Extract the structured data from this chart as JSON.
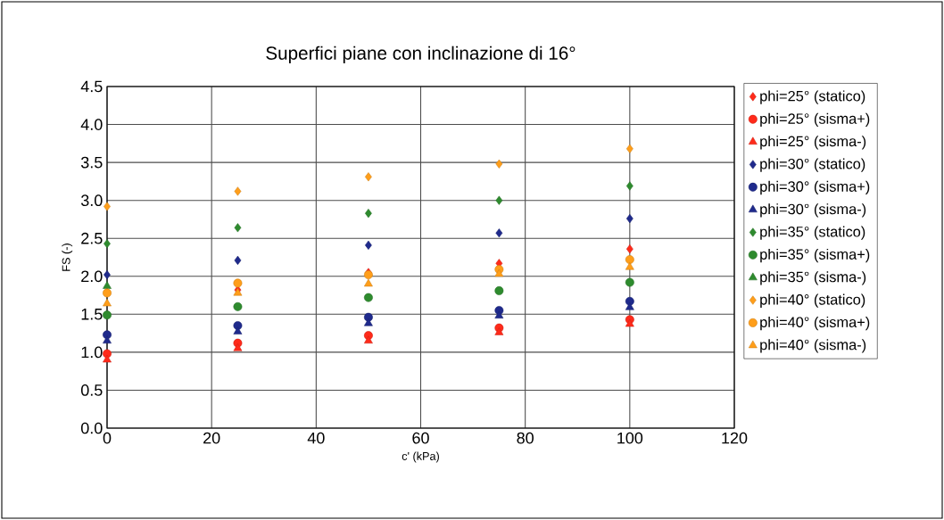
{
  "chart_data": {
    "type": "scatter",
    "title": "Superfici piane con inclinazione di 16°",
    "xlabel": "c' (kPa)",
    "ylabel": "FS (-)",
    "x": [
      0,
      25,
      50,
      75,
      100
    ],
    "xlim": [
      0,
      120
    ],
    "xticks": [
      0,
      20,
      40,
      60,
      80,
      100,
      120
    ],
    "ylim": [
      0,
      4.5
    ],
    "yticks": [
      {
        "value": 0,
        "label": "0.0"
      },
      0.5,
      {
        "value": 1,
        "label": "1.0"
      },
      1.5,
      {
        "value": 2,
        "label": "2.0"
      },
      2.5,
      {
        "value": 3,
        "label": "3.0"
      },
      3.5,
      {
        "value": 4,
        "label": "4.0"
      },
      4.5
    ],
    "grid": true,
    "legend": "right",
    "series": [
      {
        "name": "phi=25° (statico)",
        "color": "#ff2a1a",
        "marker": "diamond",
        "values": [
          null,
          1.82,
          2.05,
          2.17,
          2.36
        ]
      },
      {
        "name": "phi=25° (sisma+)",
        "color": "#ff2a1a",
        "marker": "circle",
        "values": [
          0.98,
          1.12,
          1.22,
          1.32,
          1.43
        ]
      },
      {
        "name": "phi=25° (sisma-)",
        "color": "#ff2a1a",
        "marker": "triangle",
        "values": [
          0.9,
          1.05,
          1.15,
          1.26,
          1.37
        ]
      },
      {
        "name": "phi=30° (statico)",
        "color": "#1f2a8c",
        "marker": "diamond",
        "values": [
          2.02,
          2.21,
          2.41,
          2.57,
          2.76
        ]
      },
      {
        "name": "phi=30° (sisma+)",
        "color": "#1f2a8c",
        "marker": "circle",
        "values": [
          1.23,
          1.35,
          1.46,
          1.55,
          1.67
        ]
      },
      {
        "name": "phi=30° (sisma-)",
        "color": "#1f2a8c",
        "marker": "triangle",
        "values": [
          1.15,
          1.27,
          1.38,
          1.48,
          1.59
        ]
      },
      {
        "name": "phi=35° (statico)",
        "color": "#2e8b2e",
        "marker": "diamond",
        "values": [
          2.43,
          2.64,
          2.83,
          3.0,
          3.19
        ]
      },
      {
        "name": "phi=35° (sisma+)",
        "color": "#2e8b2e",
        "marker": "circle",
        "values": [
          1.49,
          1.6,
          1.72,
          1.81,
          1.92
        ]
      },
      {
        "name": "phi=35° (sisma-)",
        "color": "#2e8b2e",
        "marker": "triangle",
        "values": [
          1.87,
          null,
          null,
          null,
          null
        ]
      },
      {
        "name": "phi=40° (statico)",
        "color": "#ff9e1a",
        "marker": "diamond",
        "values": [
          2.92,
          3.12,
          3.31,
          3.48,
          3.68
        ]
      },
      {
        "name": "phi=40° (sisma+)",
        "color": "#ff9e1a",
        "marker": "circle",
        "values": [
          1.78,
          1.91,
          2.02,
          2.09,
          2.22
        ]
      },
      {
        "name": "phi=40° (sisma-)",
        "color": "#ff9e1a",
        "marker": "triangle",
        "values": [
          1.64,
          1.78,
          1.9,
          2.03,
          2.12
        ]
      }
    ]
  }
}
